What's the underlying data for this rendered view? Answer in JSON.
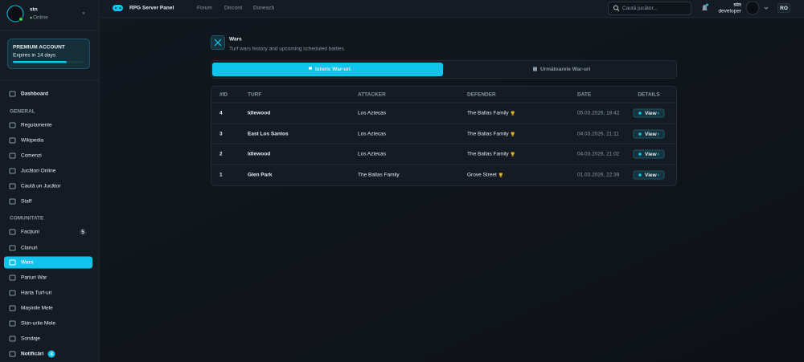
{
  "sidebar": {
    "user": {
      "name": "stn",
      "status": "Online"
    },
    "premium": {
      "label": "PREMIUM ACCOUNT",
      "expires": "Expires in 14 days"
    },
    "dashboard": "Dashboard",
    "sections": [
      {
        "title": "GENERAL",
        "items": [
          {
            "label": "Regulamente"
          },
          {
            "label": "Wikipedia"
          },
          {
            "label": "Comenzi"
          },
          {
            "label": "Jucători Online"
          },
          {
            "label": "Caută un Jucător"
          },
          {
            "label": "Staff"
          }
        ]
      },
      {
        "title": "COMUNITATE",
        "items": [
          {
            "label": "Facțiuni",
            "badge": 5
          },
          {
            "label": "Clanuri"
          },
          {
            "label": "Wars"
          },
          {
            "label": "Pariuri War"
          },
          {
            "label": "Harta Turf-uri"
          },
          {
            "label": "Mașinile Mele"
          },
          {
            "label": "Skin-urile Mele"
          },
          {
            "label": "Sondaje"
          },
          {
            "label": "Notificări",
            "badge": 4
          }
        ]
      }
    ]
  },
  "topbar": {
    "brand": "RPG Server Panel",
    "nav": [
      "Forum",
      "Discord",
      "Donează"
    ],
    "search": "Caută jucător...",
    "user": "stn",
    "role": "developer",
    "lang": "RO"
  },
  "main": {
    "title": "Wars",
    "subtitle": "Turf wars history and upcoming scheduled battles.",
    "tabs": [
      "Istoric War-uri",
      "Următoarele War-uri"
    ],
    "table": {
      "columns": [
        "#ID",
        "TURF",
        "ATTACKER",
        "DEFENDER",
        "DATE",
        "DETAILS"
      ],
      "rows": [
        [
          4,
          "Idlewood",
          "Los Aztecas",
          "The Ballas Family",
          "05.03.2026, 18:42",
          "View"
        ],
        [
          3,
          "East Los Santos",
          "Los Aztecas",
          "The Ballas Family",
          "04.03.2026, 21:11",
          "View"
        ],
        [
          2,
          "Idlewood",
          "Los Aztecas",
          "The Ballas Family",
          "04.03.2026, 21:02",
          "View"
        ],
        [
          1,
          "Glen Park",
          "The Ballas Family",
          "Grove Street",
          "01.03.2026, 22:39",
          "View"
        ]
      ]
    }
  }
}
